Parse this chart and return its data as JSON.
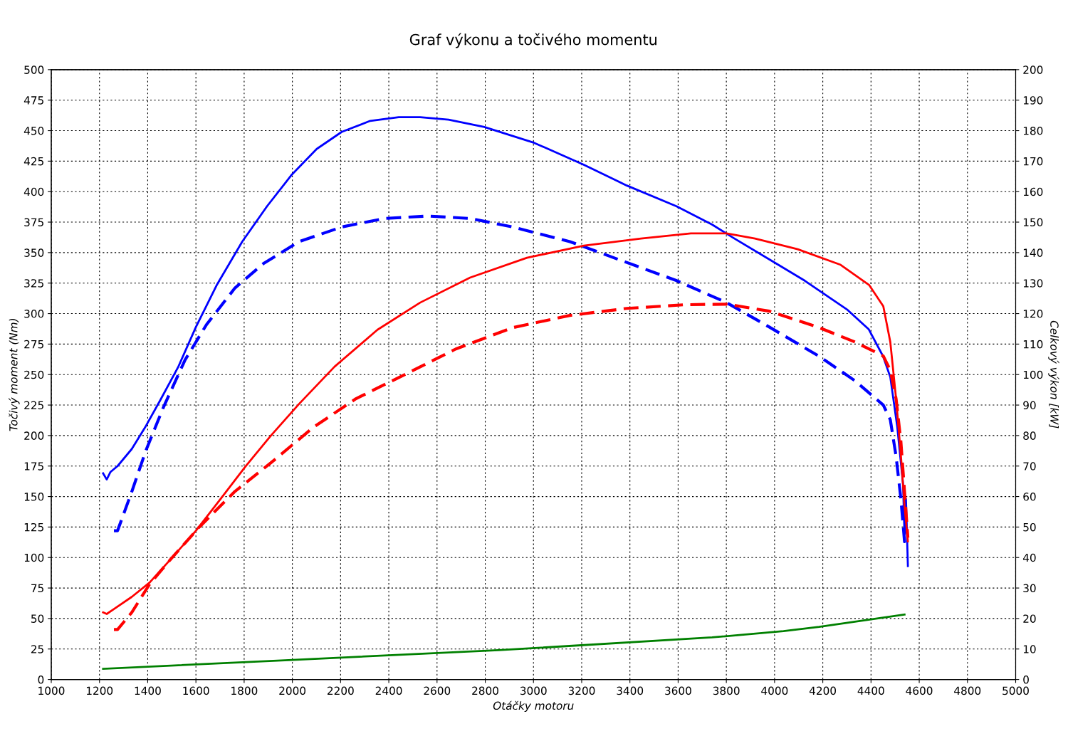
{
  "chart_data": {
    "type": "line",
    "title": "Graf výkonu a točivého momentu",
    "xlabel": "Otáčky motoru",
    "ylabel": "Točivý moment (Nm)",
    "y2label": "Celkový výkon [kW]",
    "xlim": [
      1000,
      5000
    ],
    "xticks": [
      1000,
      1200,
      1400,
      1600,
      1800,
      2000,
      2200,
      2400,
      2600,
      2800,
      3000,
      3200,
      3400,
      3600,
      3800,
      4000,
      4200,
      4400,
      4600,
      4800,
      5000
    ],
    "ylim": [
      0,
      500
    ],
    "yticks": [
      0,
      25,
      50,
      75,
      100,
      125,
      150,
      175,
      200,
      225,
      250,
      275,
      300,
      325,
      350,
      375,
      400,
      425,
      450,
      475,
      500
    ],
    "y2lim": [
      0,
      200
    ],
    "y2ticks": [
      0,
      10,
      20,
      30,
      40,
      50,
      60,
      70,
      80,
      90,
      100,
      110,
      120,
      130,
      140,
      150,
      160,
      170,
      180,
      190,
      200
    ],
    "grid": true,
    "legend": false,
    "marker": "none",
    "series": [
      {
        "color": "#0000ff",
        "line_style": "solid",
        "x": [
          1215,
          1230,
          1245,
          1275,
          1334,
          1393,
          1452,
          1526,
          1600,
          1688,
          1792,
          1895,
          1998,
          2101,
          2205,
          2323,
          2441,
          2530,
          2648,
          2796,
          3003,
          3209,
          3387,
          3593,
          3741,
          3830,
          4007,
          4125,
          4303,
          4391,
          4450,
          4480,
          4509,
          4533,
          4539,
          4545,
          4553
        ],
        "values": [
          169,
          164,
          170,
          175,
          189,
          208,
          229,
          256,
          289,
          324,
          359,
          388,
          414,
          435,
          449,
          458,
          461,
          461,
          459,
          453,
          440,
          422,
          405,
          388,
          373,
          362,
          341,
          327,
          303,
          287,
          265,
          248,
          207,
          160,
          119,
          148,
          93
        ]
      },
      {
        "color": "#0000ff",
        "line_style": "dashed",
        "x": [
          1260,
          1275,
          1334,
          1393,
          1467,
          1555,
          1644,
          1762,
          1880,
          2028,
          2205,
          2382,
          2560,
          2737,
          2914,
          3151,
          3358,
          3594,
          3801,
          3978,
          4185,
          4333,
          4451,
          4480,
          4504,
          4524,
          4539,
          4548
        ],
        "values": [
          122,
          122,
          154,
          188,
          224,
          262,
          291,
          321,
          341,
          359,
          371,
          378,
          380,
          378,
          371,
          359,
          344,
          327,
          309,
          289,
          265,
          245,
          225,
          213,
          183,
          148,
          113,
          125
        ]
      },
      {
        "color": "#ff0000",
        "line_style": "solid",
        "axis": "y2",
        "x": [
          1215,
          1230,
          1260,
          1334,
          1408,
          1496,
          1600,
          1703,
          1806,
          1910,
          2028,
          2175,
          2353,
          2530,
          2737,
          2973,
          3209,
          3446,
          3653,
          3801,
          3919,
          4096,
          4274,
          4392,
          4451,
          4480,
          4504,
          4524,
          4539,
          4553
        ],
        "values": [
          22.0,
          21.5,
          23.1,
          27.1,
          31.8,
          39.5,
          48.8,
          59.3,
          69.9,
          79.9,
          90.4,
          102.6,
          114.7,
          123.6,
          131.8,
          138.3,
          142.3,
          144.6,
          146.3,
          146.3,
          144.6,
          141.1,
          136.0,
          129.4,
          122.4,
          110.7,
          92.1,
          73.4,
          57.0,
          45.3
        ]
      },
      {
        "color": "#ff0000",
        "line_style": "dashed",
        "axis": "y2",
        "x": [
          1260,
          1275,
          1334,
          1408,
          1496,
          1614,
          1762,
          1910,
          2087,
          2264,
          2471,
          2678,
          2914,
          3151,
          3387,
          3624,
          3801,
          3978,
          4185,
          4333,
          4451,
          4480,
          4504,
          4524,
          4539,
          4553
        ],
        "values": [
          16.4,
          16.4,
          22.0,
          31.3,
          39.5,
          50.0,
          61.7,
          71.0,
          82.7,
          92.1,
          100.2,
          108.4,
          115.4,
          119.4,
          121.7,
          122.9,
          123.1,
          120.8,
          115.4,
          110.7,
          106.1,
          101.4,
          92.1,
          78.0,
          61.7,
          46.5
        ]
      },
      {
        "color": "#008000",
        "line_style": "solid",
        "x": [
          1215,
          1969,
          2855,
          3741,
          4037,
          4185,
          4539
        ],
        "values": [
          8.8,
          15.8,
          24.0,
          34.5,
          39.7,
          43.2,
          53.2
        ]
      }
    ]
  }
}
